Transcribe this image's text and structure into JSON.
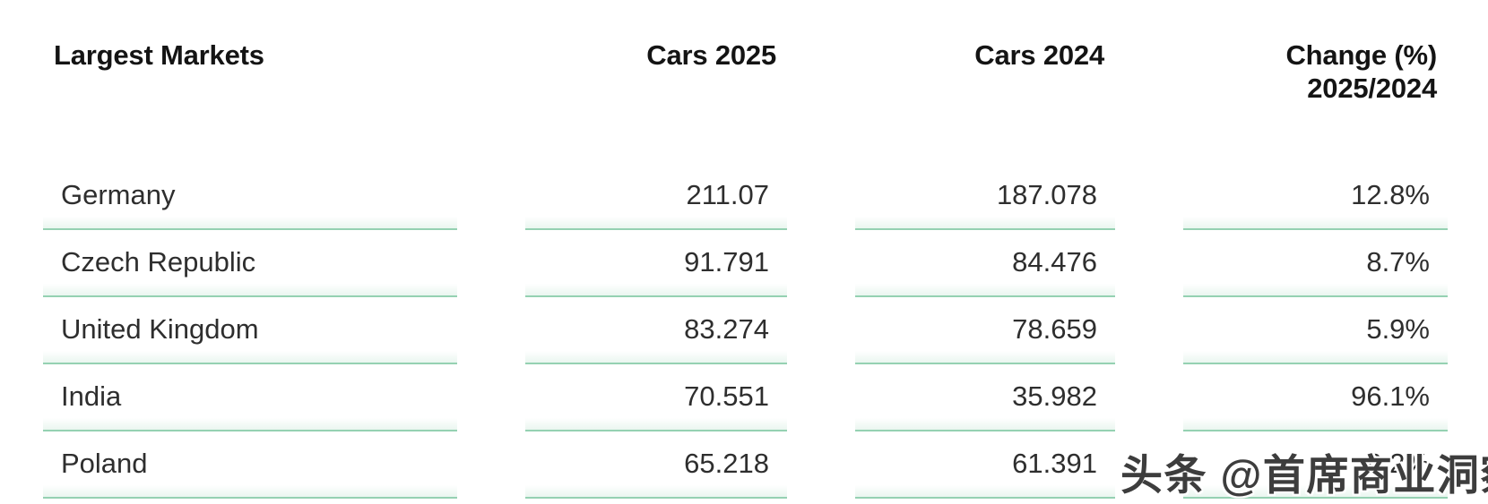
{
  "chart_data": {
    "type": "table",
    "columns": [
      "Largest Markets",
      "Cars 2025",
      "Cars 2024",
      "Change (%) 2025/2024"
    ],
    "rows": [
      {
        "market": "Germany",
        "cars_2025": "211.07",
        "cars_2024": "187.078",
        "change_pct": "12.8%"
      },
      {
        "market": "Czech Republic",
        "cars_2025": "91.791",
        "cars_2024": "84.476",
        "change_pct": "8.7%"
      },
      {
        "market": "United Kingdom",
        "cars_2025": "83.274",
        "cars_2024": "78.659",
        "change_pct": "5.9%"
      },
      {
        "market": "India",
        "cars_2025": "70.551",
        "cars_2024": "35.982",
        "change_pct": "96.1%"
      },
      {
        "market": "Poland",
        "cars_2025": "65.218",
        "cars_2024": "61.391",
        "change_pct": "6.2%"
      }
    ]
  },
  "header": {
    "change_line1": "Change (%)",
    "change_line2": "2025/2024"
  },
  "watermark": {
    "text": "头条 @首席商业洞察"
  },
  "colors": {
    "underline_green": "#95d1b2",
    "header_text": "#141414",
    "body_text": "#2e2e2e",
    "watermark_text": "#3d3d3d"
  }
}
